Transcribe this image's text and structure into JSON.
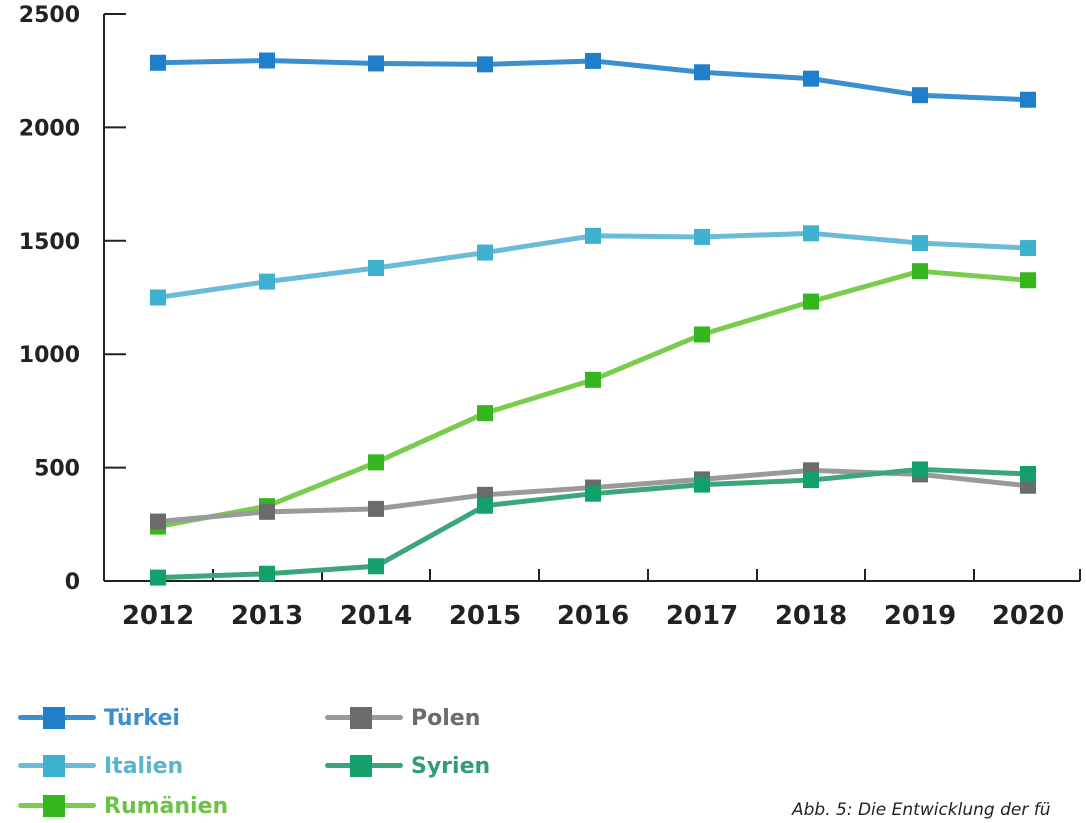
{
  "chart_data": {
    "type": "line",
    "categories": [
      "2012",
      "2013",
      "2014",
      "2015",
      "2016",
      "2017",
      "2018",
      "2019",
      "2020"
    ],
    "y_ticks": [
      "0",
      "500",
      "1000",
      "1500",
      "2000",
      "2500"
    ],
    "ylim": [
      0,
      2500
    ],
    "grid": false,
    "legend_position": "bottom-left",
    "series": [
      {
        "name": "Türkei",
        "color": "#3a8fd0",
        "values": [
          2285,
          2295,
          2282,
          2278,
          2293,
          2243,
          2215,
          2142,
          2122
        ]
      },
      {
        "name": "Italien",
        "color": "#6bbbd6",
        "values": [
          1250,
          1320,
          1380,
          1448,
          1522,
          1517,
          1533,
          1490,
          1468
        ]
      },
      {
        "name": "Rumänien",
        "color": "#7acc4e",
        "values": [
          240,
          330,
          523,
          740,
          887,
          1087,
          1232,
          1366,
          1326
        ]
      },
      {
        "name": "Polen",
        "color": "#9a9a9a",
        "values": [
          262,
          305,
          318,
          380,
          412,
          448,
          488,
          470,
          420
        ]
      },
      {
        "name": "Syrien",
        "color": "#3aa67a",
        "values": [
          15,
          32,
          65,
          332,
          385,
          425,
          445,
          492,
          472
        ]
      }
    ]
  },
  "caption": "Abb. 5: Die Entwicklung der fü"
}
